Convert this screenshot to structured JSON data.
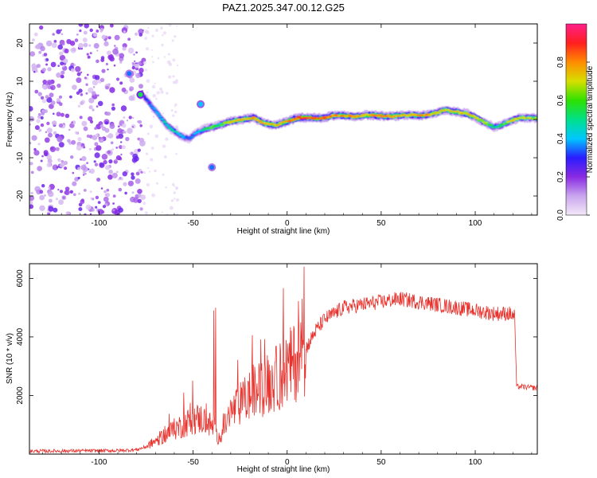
{
  "title": "PAZ1.2025.347.00.12.G25",
  "chart_data": [
    {
      "type": "heatmap",
      "name": "spectrogram",
      "xlabel": "Height of straight line (km)",
      "ylabel": "Frequency (Hz)",
      "xlim": [
        -137,
        133
      ],
      "ylim": [
        -25,
        25
      ],
      "xticks": [
        -100,
        -50,
        0,
        50,
        100
      ],
      "yticks": [
        -20,
        -10,
        0,
        10,
        20
      ],
      "colorbar": {
        "label": "Normalized spectral amplitude",
        "range": [
          0,
          1
        ],
        "ticks": [
          0.0,
          0.2,
          0.4,
          0.6,
          0.8
        ],
        "tick_labels": [
          "0.0",
          "0.2",
          "0.4",
          "0.6",
          "0.8"
        ],
        "colors": [
          "#f4e8f8",
          "#c9a6ee",
          "#8a2be2",
          "#2a1cff",
          "#00c8ff",
          "#00e08a",
          "#2ee000",
          "#d6e000",
          "#ff8c00",
          "#ff1f1f",
          "#ff1f8a"
        ]
      },
      "noise_region_x": [
        -137,
        -76
      ],
      "ridge": {
        "x": [
          -76,
          -72,
          -68,
          -64,
          -60,
          -56,
          -52,
          -48,
          -44,
          -40,
          -36,
          -30,
          -24,
          -18,
          -12,
          -6,
          0,
          6,
          12,
          18,
          24,
          30,
          36,
          42,
          48,
          54,
          60,
          66,
          72,
          78,
          84,
          90,
          96,
          102,
          106,
          110,
          114,
          118,
          124,
          133
        ],
        "freq": [
          6,
          3.5,
          1,
          -1.5,
          -3,
          -4.5,
          -5,
          -3.5,
          -2.5,
          -2,
          -1.5,
          -0.5,
          0,
          0.5,
          -1,
          -1.5,
          -0.5,
          0.5,
          0.5,
          0.3,
          1,
          1,
          0.8,
          1.2,
          1,
          0.8,
          1,
          1.2,
          1,
          1.5,
          2.5,
          2,
          1.5,
          0,
          -1,
          -2,
          -1.5,
          -0.5,
          0.5,
          0.3
        ],
        "amplitude": [
          0.3,
          0.4,
          0.45,
          0.5,
          0.5,
          0.45,
          0.35,
          0.45,
          0.55,
          0.65,
          0.6,
          0.8,
          0.8,
          0.85,
          0.8,
          0.8,
          0.85,
          0.95,
          0.95,
          0.9,
          0.85,
          0.85,
          0.85,
          0.8,
          0.85,
          0.85,
          0.8,
          0.8,
          0.85,
          0.8,
          0.75,
          0.8,
          0.8,
          0.75,
          0.7,
          0.55,
          0.6,
          0.75,
          0.75,
          0.7
        ]
      },
      "blobs": [
        {
          "x": -84,
          "freq": 12,
          "amplitude": 0.35
        },
        {
          "x": -78,
          "freq": 6.5,
          "amplitude": 0.55
        },
        {
          "x": -46,
          "freq": 4,
          "amplitude": 0.4
        },
        {
          "x": -40,
          "freq": -12.5,
          "amplitude": 0.35
        }
      ]
    },
    {
      "type": "line",
      "name": "snr",
      "xlabel": "Height of straight line (km)",
      "ylabel": "SNR (10 * v/v)",
      "xlim": [
        -137,
        133
      ],
      "ylim": [
        0,
        6500
      ],
      "xticks": [
        -100,
        -50,
        0,
        50,
        100
      ],
      "yticks": [
        2000,
        4000,
        6000
      ],
      "color": "#e8322d",
      "envelope": {
        "x": [
          -137,
          -90,
          -80,
          -75,
          -70,
          -65,
          -60,
          -55,
          -50,
          -45,
          -40,
          -37,
          -35,
          -30,
          -25,
          -20,
          -15,
          -10,
          -5,
          0,
          5,
          10,
          15,
          20,
          30,
          40,
          50,
          60,
          70,
          80,
          90,
          100,
          110,
          118,
          121,
          122,
          125,
          133
        ],
        "values": [
          100,
          120,
          150,
          250,
          450,
          650,
          850,
          1000,
          1200,
          1200,
          950,
          550,
          700,
          1400,
          1700,
          2000,
          2200,
          2400,
          2600,
          2900,
          3200,
          3600,
          4200,
          4600,
          5000,
          5100,
          5200,
          5300,
          5200,
          5100,
          5000,
          4900,
          4800,
          4800,
          4700,
          2300,
          2300,
          2250
        ]
      },
      "spikes": [
        {
          "x": -38,
          "value": 5000
        },
        {
          "x": -39,
          "value": 4900
        },
        {
          "x": 9,
          "value": 6400
        },
        {
          "x": 8,
          "value": 5300
        },
        {
          "x": -55,
          "value": 2100
        }
      ]
    }
  ]
}
